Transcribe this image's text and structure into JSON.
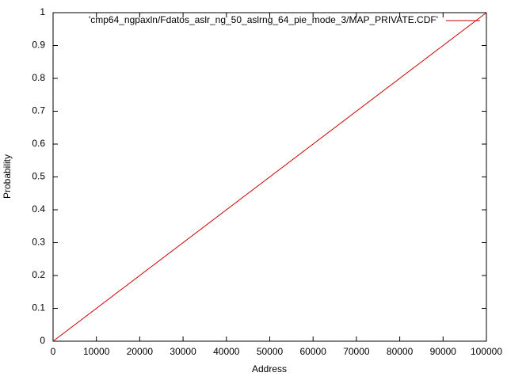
{
  "chart_data": {
    "type": "line",
    "x_label": "Address",
    "y_label": "Probability",
    "x": [
      0,
      100000
    ],
    "series": [
      {
        "name": "'cmp64_ngpaxln/Fdatos_aslr_ng_50_aslrng_64_pie_mode_3/MAP_PRIVATE.CDF'",
        "color": "#cc0000",
        "values": [
          0,
          1
        ]
      }
    ],
    "xlim": [
      0,
      100000
    ],
    "xticks": [
      0,
      10000,
      20000,
      30000,
      40000,
      50000,
      60000,
      70000,
      80000,
      90000,
      100000
    ],
    "ylim": [
      0,
      1
    ],
    "yticks": [
      0,
      0.1,
      0.2,
      0.3,
      0.4,
      0.5,
      0.6,
      0.7,
      0.8,
      0.9,
      1
    ],
    "legend": "top-right"
  }
}
